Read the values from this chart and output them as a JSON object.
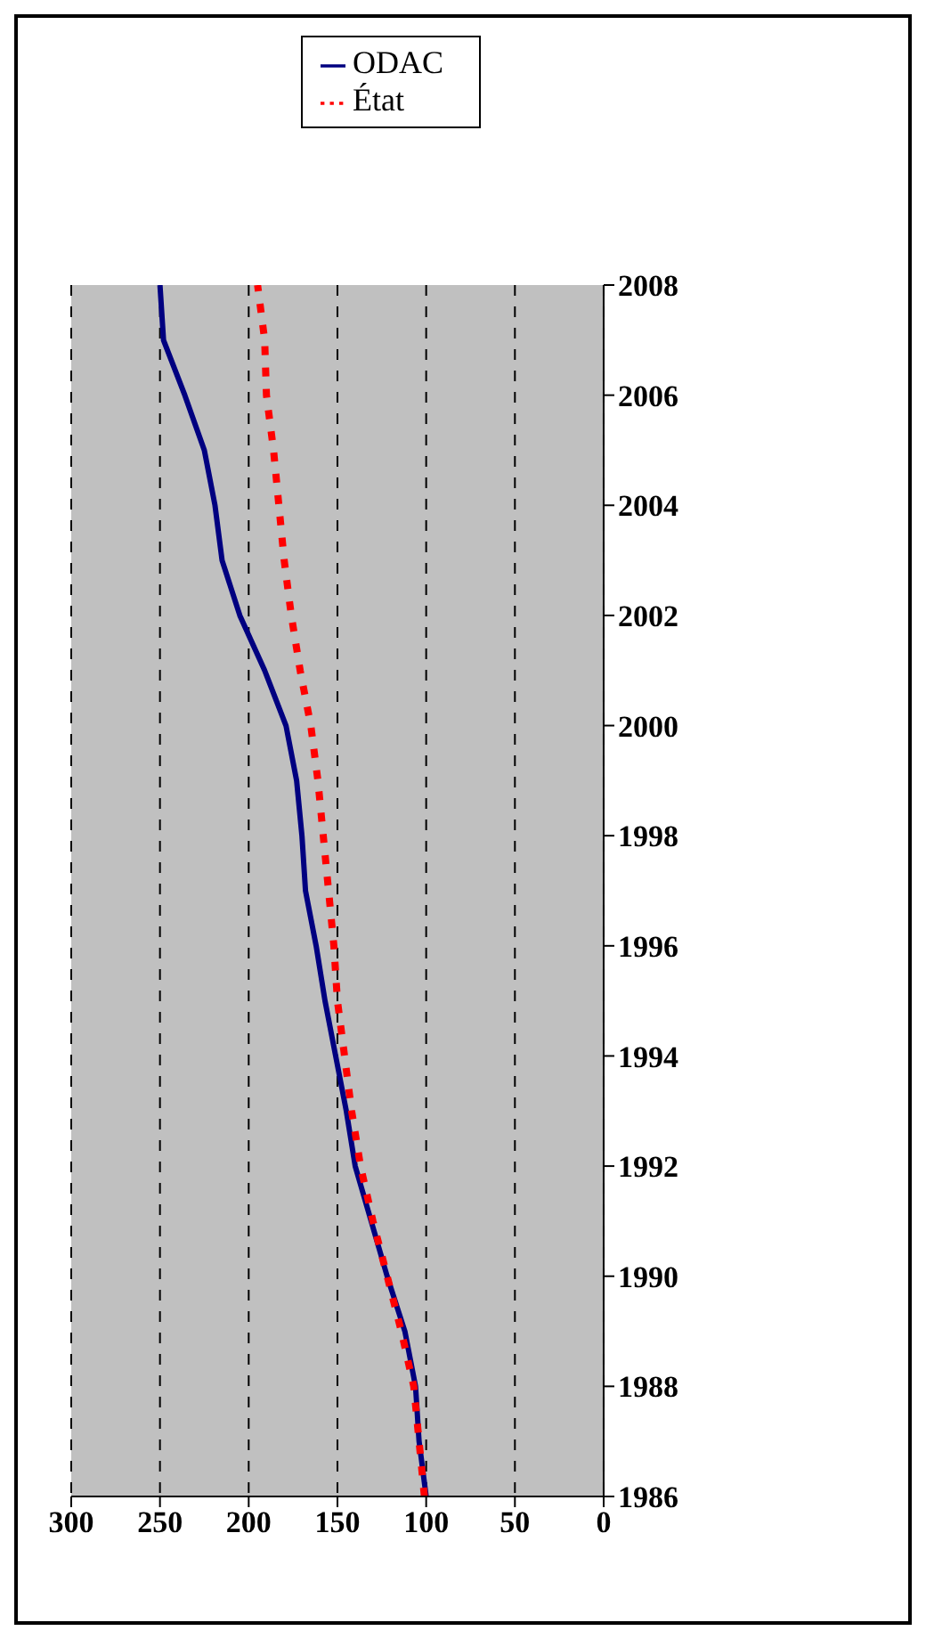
{
  "chart_data": {
    "type": "line",
    "orientation": "horizontal",
    "x": [
      1986,
      1987,
      1988,
      1989,
      1990,
      1991,
      1992,
      1993,
      1994,
      1995,
      1996,
      1997,
      1998,
      1999,
      2000,
      2001,
      2002,
      2003,
      2004,
      2005,
      2006,
      2007,
      2008
    ],
    "series": [
      {
        "name": "ODAC",
        "color": "#000080",
        "line_style": "solid",
        "values": [
          100,
          104,
          106,
          112,
          122,
          131,
          140,
          145,
          151,
          157,
          162,
          168,
          170,
          173,
          179,
          191,
          205,
          215,
          219,
          225,
          236,
          248,
          250
        ]
      },
      {
        "name": "État",
        "color": "#ff0000",
        "line_style": "dashed",
        "values": [
          101,
          104,
          107,
          114,
          122,
          130,
          137,
          142,
          146,
          150,
          152,
          155,
          158,
          161,
          165,
          171,
          176,
          180,
          183,
          186,
          190,
          191,
          195
        ]
      }
    ],
    "ylim": [
      1986,
      2008
    ],
    "yticks": [
      1986,
      1988,
      1990,
      1992,
      1994,
      1996,
      1998,
      2000,
      2002,
      2004,
      2006,
      2008
    ],
    "xlim": [
      300,
      0
    ],
    "xticks": [
      300,
      250,
      200,
      150,
      100,
      50,
      0
    ],
    "grid": "x",
    "legend": "top right",
    "marker": "none"
  }
}
